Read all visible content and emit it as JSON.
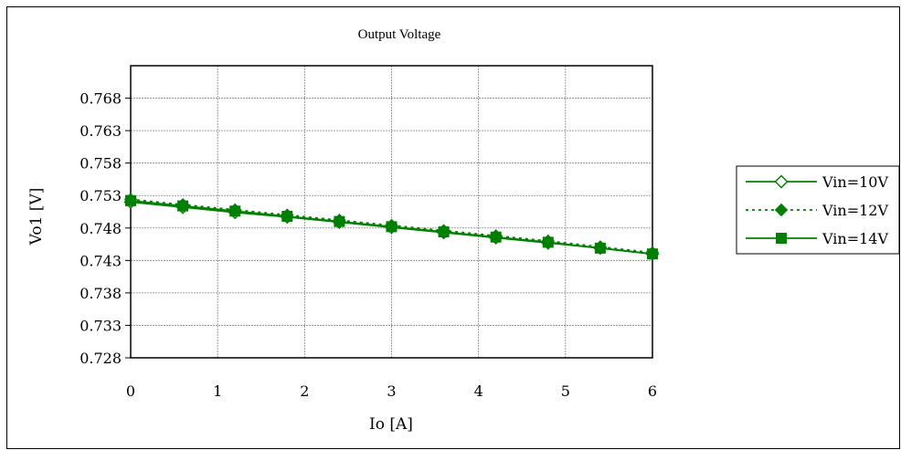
{
  "chart_data": {
    "type": "line",
    "title": "Output Voltage",
    "xlabel": "Io [A]",
    "ylabel": "Vo1 [V]",
    "xlim": [
      0,
      6
    ],
    "ylim": [
      0.728,
      0.773
    ],
    "x_ticks": [
      "0",
      "1",
      "2",
      "3",
      "4",
      "5",
      "6"
    ],
    "y_ticks": [
      "0.728",
      "0.733",
      "0.738",
      "0.743",
      "0.748",
      "0.753",
      "0.758",
      "0.763",
      "0.768"
    ],
    "grid": true,
    "legend_position": "right",
    "x": [
      0,
      0.6,
      1.2,
      1.8,
      2.4,
      3.0,
      3.6,
      4.2,
      4.8,
      5.4,
      6.0
    ],
    "series": [
      {
        "name": "Vin=10V",
        "marker": "diamond-open",
        "line": "solid",
        "color": "#008000",
        "values": [
          0.752,
          0.7512,
          0.7504,
          0.7497,
          0.7489,
          0.7481,
          0.7473,
          0.7465,
          0.7457,
          0.7449,
          0.744
        ]
      },
      {
        "name": "Vin=12V",
        "marker": "diamond-filled",
        "line": "dotted",
        "color": "#008000",
        "values": [
          0.7524,
          0.7516,
          0.7508,
          0.75,
          0.7492,
          0.7484,
          0.7476,
          0.7468,
          0.746,
          0.7451,
          0.7442
        ]
      },
      {
        "name": "Vin=14V",
        "marker": "square-filled",
        "line": "solid",
        "color": "#008000",
        "values": [
          0.7522,
          0.7514,
          0.7506,
          0.7498,
          0.749,
          0.7482,
          0.7474,
          0.7466,
          0.7458,
          0.7449,
          0.744
        ]
      }
    ]
  }
}
